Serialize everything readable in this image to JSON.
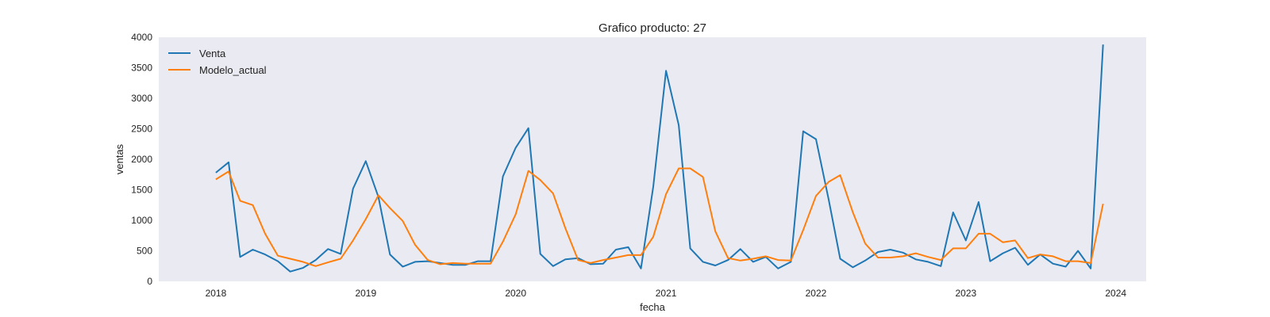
{
  "chart_data": {
    "type": "line",
    "title": "Grafico producto: 27",
    "xlabel": "fecha",
    "ylabel": "ventas",
    "x_ticks": [
      "2018",
      "2019",
      "2020",
      "2021",
      "2022",
      "2023",
      "2024"
    ],
    "y_ticks": [
      "0",
      "500",
      "1000",
      "1500",
      "2000",
      "2500",
      "3000",
      "3500",
      "4000"
    ],
    "ylim": [
      0,
      4000
    ],
    "xlim": [
      "2017-08-15",
      "2024-03-15"
    ],
    "grid": false,
    "background": "#EAEAF2",
    "legend_position": "top-left",
    "x": [
      "2018-01",
      "2018-02",
      "2018-03",
      "2018-04",
      "2018-05",
      "2018-06",
      "2018-07",
      "2018-08",
      "2018-09",
      "2018-10",
      "2018-11",
      "2018-12",
      "2019-01",
      "2019-02",
      "2019-03",
      "2019-04",
      "2019-05",
      "2019-06",
      "2019-07",
      "2019-08",
      "2019-09",
      "2019-10",
      "2019-11",
      "2019-12",
      "2020-01",
      "2020-02",
      "2020-03",
      "2020-04",
      "2020-05",
      "2020-06",
      "2020-07",
      "2020-08",
      "2020-09",
      "2020-10",
      "2020-11",
      "2020-12",
      "2021-01",
      "2021-02",
      "2021-03",
      "2021-04",
      "2021-05",
      "2021-06",
      "2021-07",
      "2021-08",
      "2021-09",
      "2021-10",
      "2021-11",
      "2021-12",
      "2022-01",
      "2022-02",
      "2022-03",
      "2022-04",
      "2022-05",
      "2022-06",
      "2022-07",
      "2022-08",
      "2022-09",
      "2022-10",
      "2022-11",
      "2022-12",
      "2023-01",
      "2023-02",
      "2023-03",
      "2023-04",
      "2023-05",
      "2023-06",
      "2023-07",
      "2023-08",
      "2023-09",
      "2023-10",
      "2023-11",
      "2023-12"
    ],
    "series": [
      {
        "name": "Venta",
        "color": "#1F77B4",
        "values": [
          1780,
          1950,
          400,
          520,
          440,
          330,
          160,
          220,
          350,
          530,
          450,
          1520,
          1970,
          1380,
          440,
          240,
          320,
          330,
          300,
          270,
          270,
          330,
          330,
          1720,
          2190,
          2510,
          450,
          250,
          360,
          380,
          280,
          290,
          520,
          560,
          210,
          1550,
          3450,
          2560,
          540,
          320,
          260,
          350,
          530,
          320,
          400,
          210,
          320,
          2460,
          2330,
          1340,
          370,
          230,
          340,
          480,
          520,
          470,
          360,
          320,
          250,
          1130,
          670,
          1300,
          330,
          460,
          550,
          270,
          440,
          290,
          240,
          500,
          210,
          3880
        ]
      },
      {
        "name": "Modelo_actual",
        "color": "#FF7F0E",
        "values": [
          1670,
          1800,
          1320,
          1250,
          780,
          420,
          370,
          320,
          250,
          310,
          370,
          670,
          1020,
          1410,
          1200,
          990,
          600,
          350,
          280,
          300,
          290,
          290,
          290,
          650,
          1100,
          1810,
          1660,
          1440,
          870,
          350,
          300,
          350,
          390,
          430,
          430,
          730,
          1430,
          1850,
          1850,
          1710,
          820,
          380,
          340,
          370,
          410,
          350,
          340,
          840,
          1400,
          1630,
          1740,
          1130,
          620,
          390,
          390,
          410,
          460,
          400,
          350,
          540,
          540,
          780,
          780,
          640,
          670,
          380,
          440,
          410,
          330,
          330,
          300,
          1270
        ]
      }
    ]
  }
}
